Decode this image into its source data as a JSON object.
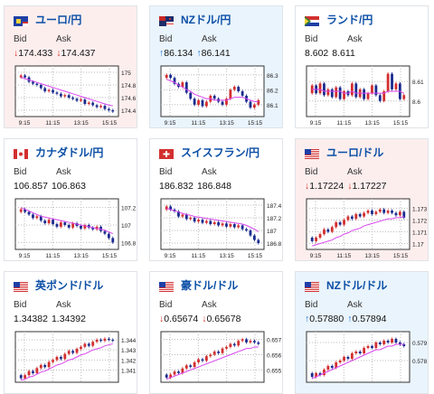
{
  "cards": [
    {
      "id": "eurjpy",
      "title": "ユーロ/円",
      "bid_label": "Bid",
      "ask_label": "Ask",
      "bid": "174.433",
      "ask": "174.437",
      "dir": "down",
      "flag": "eu",
      "bg": "pink",
      "chart_data": {
        "type": "line",
        "x_ticks": [
          "9:15",
          "11:15",
          "13:15",
          "15:15"
        ],
        "y_ticks": [
          "175",
          "174.8",
          "174.6",
          "174.4"
        ],
        "ylim": [
          174.3,
          175.1
        ],
        "price": [
          174.95,
          174.92,
          174.85,
          174.82,
          174.8,
          174.75,
          174.7,
          174.72,
          174.68,
          174.66,
          174.62,
          174.64,
          174.6,
          174.58,
          174.55,
          174.57,
          174.5,
          174.52,
          174.48,
          174.45,
          174.47,
          174.42,
          174.4,
          174.38
        ],
        "ma": [
          174.92,
          174.9,
          174.88,
          174.86,
          174.84,
          174.82,
          174.8,
          174.78,
          174.76,
          174.74,
          174.72,
          174.7,
          174.68,
          174.66,
          174.64,
          174.62,
          174.6,
          174.58,
          174.56,
          174.54,
          174.52,
          174.5,
          174.48,
          174.47
        ]
      }
    },
    {
      "id": "nzdjpy",
      "title": "NZドル/円",
      "bid_label": "Bid",
      "ask_label": "Ask",
      "bid": "86.134",
      "ask": "86.141",
      "dir": "up",
      "flag": "nz",
      "bg": "blue",
      "chart_data": {
        "type": "line",
        "x_ticks": [
          "9:15",
          "11:15",
          "13:15",
          "15:15"
        ],
        "y_ticks": [
          "86.3",
          "86.2",
          "86.1"
        ],
        "ylim": [
          86.02,
          86.36
        ],
        "price": [
          86.3,
          86.28,
          86.24,
          86.22,
          86.25,
          86.18,
          86.14,
          86.1,
          86.13,
          86.09,
          86.12,
          86.16,
          86.14,
          86.12,
          86.1,
          86.14,
          86.2,
          86.22,
          86.19,
          86.16,
          86.12,
          86.08,
          86.1,
          86.13
        ],
        "ma": [
          86.27,
          86.26,
          86.25,
          86.23,
          86.22,
          86.2,
          86.19,
          86.17,
          86.16,
          86.15,
          86.14,
          86.14,
          86.13,
          86.13,
          86.13,
          86.13,
          86.14,
          86.15,
          86.15,
          86.15,
          86.14,
          86.13,
          86.12,
          86.12
        ]
      }
    },
    {
      "id": "zarjpy",
      "title": "ランド/円",
      "bid_label": "Bid",
      "ask_label": "Ask",
      "bid": "8.602",
      "ask": "8.611",
      "dir": "none",
      "flag": "za",
      "bg": "white",
      "chart_data": {
        "type": "line",
        "x_ticks": [
          "9:15",
          "11:15",
          "13:15",
          "15:15"
        ],
        "y_ticks": [
          "8.61",
          "8.6"
        ],
        "ylim": [
          8.592,
          8.618
        ],
        "price": [
          8.608,
          8.604,
          8.609,
          8.603,
          8.606,
          8.602,
          8.607,
          8.601,
          8.605,
          8.603,
          8.609,
          8.602,
          8.606,
          8.601,
          8.604,
          8.608,
          8.603,
          8.6,
          8.605,
          8.614,
          8.606,
          8.609,
          8.601,
          8.603
        ],
        "ma": [
          8.606,
          8.606,
          8.606,
          8.605,
          8.605,
          8.605,
          8.605,
          8.605,
          8.604,
          8.604,
          8.605,
          8.604,
          8.604,
          8.604,
          8.604,
          8.604,
          8.604,
          8.604,
          8.604,
          8.605,
          8.605,
          8.605,
          8.605,
          8.604
        ]
      }
    },
    {
      "id": "cadjpy",
      "title": "カナダドル/円",
      "bid_label": "Bid",
      "ask_label": "Ask",
      "bid": "106.857",
      "ask": "106.863",
      "dir": "none",
      "flag": "ca",
      "bg": "white",
      "chart_data": {
        "type": "line",
        "x_ticks": [
          "9:15",
          "11:15",
          "13:15",
          "15:15"
        ],
        "y_ticks": [
          "107.2",
          "107",
          "106.8"
        ],
        "ylim": [
          106.72,
          107.3
        ],
        "price": [
          107.18,
          107.15,
          107.12,
          107.08,
          107.1,
          107.05,
          107.02,
          107.06,
          107.01,
          106.98,
          107.03,
          107.0,
          106.97,
          107.02,
          106.99,
          106.96,
          107.0,
          106.97,
          106.95,
          106.98,
          106.93,
          106.9,
          106.85,
          106.8
        ],
        "ma": [
          107.2,
          107.18,
          107.16,
          107.14,
          107.12,
          107.1,
          107.09,
          107.08,
          107.07,
          107.06,
          107.05,
          107.04,
          107.03,
          107.02,
          107.01,
          107.0,
          106.99,
          106.98,
          106.97,
          106.96,
          106.95,
          106.94,
          106.92,
          106.9
        ]
      }
    },
    {
      "id": "chfjpy",
      "title": "スイスフラン/円",
      "bid_label": "Bid",
      "ask_label": "Ask",
      "bid": "186.832",
      "ask": "186.848",
      "dir": "none",
      "flag": "ch",
      "bg": "white",
      "chart_data": {
        "type": "line",
        "x_ticks": [
          "9:15",
          "11:15",
          "13:15",
          "15:15"
        ],
        "y_ticks": [
          "187.4",
          "187.2",
          "187",
          "186.8"
        ],
        "ylim": [
          186.7,
          187.5
        ],
        "price": [
          187.38,
          187.33,
          187.3,
          187.22,
          187.25,
          187.18,
          187.2,
          187.14,
          187.17,
          187.12,
          187.15,
          187.1,
          187.13,
          187.08,
          187.11,
          187.06,
          187.1,
          187.05,
          187.08,
          187.02,
          187.0,
          186.92,
          186.85,
          186.8
        ],
        "ma": [
          187.35,
          187.33,
          187.31,
          187.29,
          187.27,
          187.25,
          187.24,
          187.22,
          187.21,
          187.2,
          187.19,
          187.18,
          187.17,
          187.16,
          187.15,
          187.14,
          187.13,
          187.12,
          187.11,
          187.1,
          187.08,
          187.05,
          187.02,
          186.98
        ]
      }
    },
    {
      "id": "eurusd",
      "title": "ユーロ/ドル",
      "bid_label": "Bid",
      "ask_label": "Ask",
      "bid": "1.17224",
      "ask": "1.17227",
      "dir": "down",
      "flag": "us",
      "bg": "pink",
      "chart_data": {
        "type": "line",
        "x_ticks": [
          "9:15",
          "11:15",
          "13:15",
          "15:15"
        ],
        "y_ticks": [
          "1.173",
          "1.172",
          "1.171",
          "1.17"
        ],
        "ylim": [
          1.1695,
          1.1738
        ],
        "price": [
          1.1702,
          1.1705,
          1.1708,
          1.1712,
          1.171,
          1.1714,
          1.1718,
          1.1716,
          1.172,
          1.1723,
          1.1721,
          1.1725,
          1.1723,
          1.1726,
          1.1728,
          1.1725,
          1.1727,
          1.1729,
          1.1726,
          1.1728,
          1.1726,
          1.1724,
          1.1727,
          1.1722
        ],
        "ma": [
          1.1698,
          1.1699,
          1.17,
          1.1701,
          1.1702,
          1.1703,
          1.1705,
          1.1706,
          1.1708,
          1.1709,
          1.1711,
          1.1712,
          1.1713,
          1.1715,
          1.1716,
          1.1717,
          1.1718,
          1.1719,
          1.172,
          1.1721,
          1.1721,
          1.1722,
          1.1722,
          1.1723
        ]
      }
    },
    {
      "id": "gbpusd",
      "title": "英ポンド/ドル",
      "bid_label": "Bid",
      "ask_label": "Ask",
      "bid": "1.34382",
      "ask": "1.34392",
      "dir": "none",
      "flag": "us",
      "bg": "white",
      "chart_data": {
        "type": "line",
        "x_ticks": [],
        "y_ticks": [
          "1.344",
          "1.343",
          "1.342",
          "1.341"
        ],
        "ylim": [
          1.3398,
          1.3448
        ],
        "price": [
          1.3402,
          1.3405,
          1.3409,
          1.3407,
          1.3412,
          1.3415,
          1.3413,
          1.3418,
          1.342,
          1.3423,
          1.3421,
          1.3426,
          1.3429,
          1.3427,
          1.3431,
          1.3433,
          1.3436,
          1.3434,
          1.3438,
          1.344,
          1.3439,
          1.3441,
          1.344,
          1.3439
        ],
        "ma": [
          1.34,
          1.3401,
          1.3403,
          1.3404,
          1.3406,
          1.3408,
          1.3409,
          1.3411,
          1.3413,
          1.3415,
          1.3416,
          1.3418,
          1.342,
          1.3421,
          1.3423,
          1.3425,
          1.3426,
          1.3428,
          1.343,
          1.3431,
          1.3432,
          1.3434,
          1.3435,
          1.3436
        ]
      }
    },
    {
      "id": "audusd",
      "title": "豪ドル/ドル",
      "bid_label": "Bid",
      "ask_label": "Ask",
      "bid": "0.65674",
      "ask": "0.65678",
      "dir": "down",
      "flag": "us",
      "bg": "white",
      "chart_data": {
        "type": "line",
        "x_ticks": [],
        "y_ticks": [
          "0.657",
          "0.656",
          "0.655"
        ],
        "ylim": [
          0.6542,
          0.6575
        ],
        "price": [
          0.6545,
          0.6547,
          0.6549,
          0.6548,
          0.6551,
          0.6553,
          0.6552,
          0.6555,
          0.6557,
          0.6556,
          0.6559,
          0.656,
          0.6562,
          0.6561,
          0.6564,
          0.6565,
          0.6567,
          0.6566,
          0.6569,
          0.657,
          0.6568,
          0.6569,
          0.6568,
          0.6567
        ],
        "ma": [
          0.6544,
          0.6545,
          0.6546,
          0.6547,
          0.6548,
          0.6549,
          0.655,
          0.6551,
          0.6552,
          0.6553,
          0.6554,
          0.6555,
          0.6556,
          0.6557,
          0.6558,
          0.6559,
          0.656,
          0.6561,
          0.6562,
          0.6563,
          0.6564,
          0.6564,
          0.6565,
          0.6565
        ]
      }
    },
    {
      "id": "nzdusd",
      "title": "NZドル/ドル",
      "bid_label": "Bid",
      "ask_label": "Ask",
      "bid": "0.57880",
      "ask": "0.57894",
      "dir": "up",
      "flag": "us",
      "bg": "blue",
      "chart_data": {
        "type": "line",
        "x_ticks": [],
        "y_ticks": [
          "0.579",
          "0.578"
        ],
        "ylim": [
          0.5768,
          0.5796
        ],
        "price": [
          0.5771,
          0.5773,
          0.5772,
          0.5775,
          0.5777,
          0.5776,
          0.5779,
          0.578,
          0.5782,
          0.5781,
          0.5784,
          0.5785,
          0.5784,
          0.5787,
          0.5788,
          0.5787,
          0.579,
          0.5789,
          0.5791,
          0.579,
          0.5792,
          0.579,
          0.5789,
          0.5788
        ],
        "ma": [
          0.577,
          0.5771,
          0.5772,
          0.5773,
          0.5774,
          0.5775,
          0.5776,
          0.5777,
          0.5778,
          0.5779,
          0.578,
          0.5781,
          0.5782,
          0.5783,
          0.5784,
          0.5785,
          0.5786,
          0.5786,
          0.5787,
          0.5788,
          0.5788,
          0.5789,
          0.5789,
          0.5789
        ]
      }
    }
  ]
}
